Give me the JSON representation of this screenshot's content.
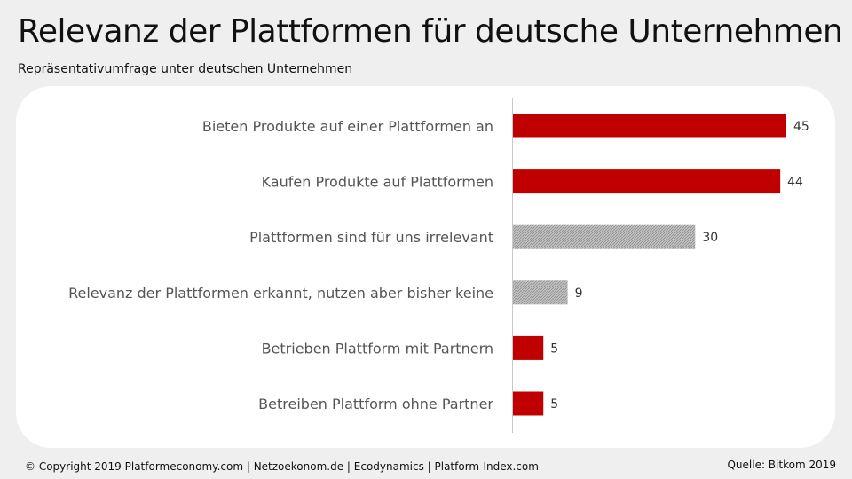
{
  "header": {
    "title": "Relevanz der Plattformen für deutsche Unternehmen",
    "subtitle": "Repräsentativumfrage unter deutschen Unternehmen"
  },
  "footer": {
    "copyright": "© Copyright 2019 Platformeconomy.com | Netzoekonom.de | Ecodynamics | Platform-Index.com",
    "source": "Quelle: Bitkom 2019"
  },
  "colors": {
    "highlight": "#c00000",
    "neutral": "#b0b0b0",
    "neutral_stripe": "#8c8c8c"
  },
  "chart_data": {
    "type": "bar",
    "orientation": "horizontal",
    "categories": [
      "Bieten Produkte auf einer Plattformen an",
      "Kaufen Produkte auf Plattformen",
      "Plattformen sind für uns irrelevant",
      "Relevanz der Plattformen erkannt, nutzen aber bisher keine",
      "Betrieben Plattform mit Partnern",
      "Betreiben Plattform ohne Partner"
    ],
    "values": [
      45,
      44,
      30,
      9,
      5,
      5
    ],
    "bar_styles": [
      "highlight",
      "highlight",
      "neutral",
      "neutral",
      "highlight",
      "highlight"
    ],
    "title": "",
    "xlabel": "",
    "ylabel": "",
    "xlim": [
      0,
      50
    ],
    "grid": false,
    "legend": "none"
  }
}
